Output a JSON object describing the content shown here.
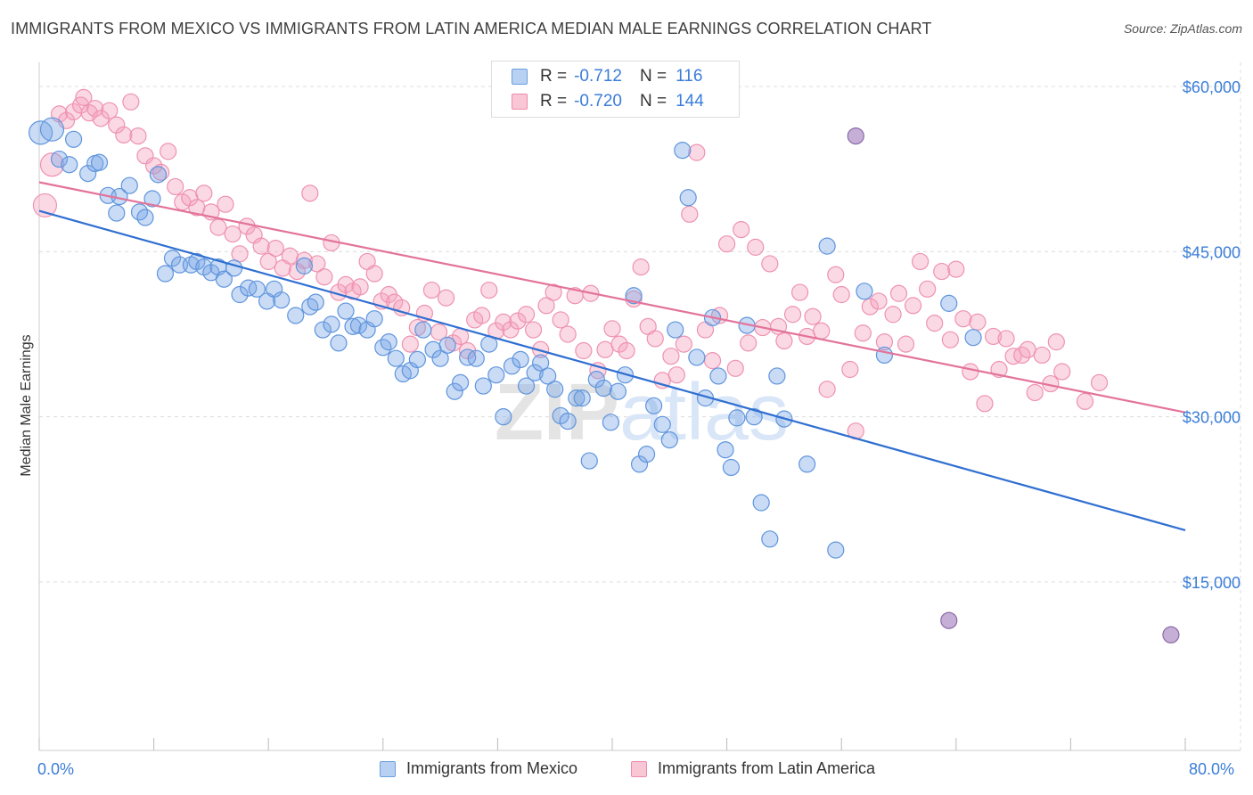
{
  "title": "IMMIGRANTS FROM MEXICO VS IMMIGRANTS FROM LATIN AMERICA MEDIAN MALE EARNINGS CORRELATION CHART",
  "source": "Source: ZipAtlas.com",
  "watermark": "ZIPatlas",
  "legend": {
    "rows": [
      {
        "r_label": "R =",
        "r_value": "-0.712",
        "n_label": "N =",
        "n_value": "116",
        "fill": "#b8d1f3",
        "stroke": "#6a9fe0"
      },
      {
        "r_label": "R =",
        "r_value": "-0.720",
        "n_label": "N =",
        "n_value": "144",
        "fill": "#f9c6d5",
        "stroke": "#ee8aab"
      }
    ]
  },
  "bottom_legend": [
    {
      "label": "Immigrants from Mexico",
      "fill": "#b8d1f3",
      "stroke": "#6a9fe0"
    },
    {
      "label": "Immigrants from Latin America",
      "fill": "#f9c6d5",
      "stroke": "#ee8aab"
    }
  ],
  "colors": {
    "blue_fill": "rgba(120,166,230,0.40)",
    "blue_stroke": "#5f95dd",
    "blue_line": "#2f6fd1",
    "pink_fill": "rgba(245,160,188,0.40)",
    "pink_stroke": "#ee92b0",
    "pink_line": "#e3739b",
    "overlap_fill": "rgba(150,110,180,0.55)",
    "overlap_stroke": "#8c6aa8",
    "axis_text": "#3b7dd8",
    "grid": "#dcdcdc"
  },
  "chart_data": {
    "type": "scatter",
    "title": "IMMIGRANTS FROM MEXICO VS IMMIGRANTS FROM LATIN AMERICA MEDIAN MALE EARNINGS CORRELATION CHART",
    "xlabel": "",
    "ylabel": "Median Male Earnings",
    "x_tick_labels": [
      "0.0%",
      "80.0%"
    ],
    "xlim": [
      0,
      80
    ],
    "ylim": [
      0,
      62000
    ],
    "y_ticks": [
      15000,
      30000,
      45000,
      60000
    ],
    "y_tick_labels": [
      "$15,000",
      "$30,000",
      "$45,000",
      "$60,000"
    ],
    "grid": true,
    "series": [
      {
        "name": "Immigrants from Mexico",
        "r": -0.712,
        "n": 116,
        "trend": {
          "x": [
            0,
            80
          ],
          "y": [
            48700,
            19700
          ]
        },
        "points": [
          [
            0.1,
            55800
          ],
          [
            0.9,
            56100
          ],
          [
            1.4,
            53400
          ],
          [
            2.1,
            52900
          ],
          [
            2.4,
            55200
          ],
          [
            3.4,
            52100
          ],
          [
            3.9,
            53000
          ],
          [
            4.2,
            53100
          ],
          [
            4.8,
            50100
          ],
          [
            5.4,
            48500
          ],
          [
            5.6,
            50000
          ],
          [
            6.3,
            51000
          ],
          [
            7.0,
            48600
          ],
          [
            7.4,
            48100
          ],
          [
            7.9,
            49800
          ],
          [
            8.3,
            52000
          ],
          [
            8.8,
            43000
          ],
          [
            9.3,
            44400
          ],
          [
            9.8,
            43800
          ],
          [
            10.6,
            43800
          ],
          [
            11.0,
            44100
          ],
          [
            11.5,
            43600
          ],
          [
            12.0,
            43100
          ],
          [
            12.5,
            43600
          ],
          [
            12.9,
            42500
          ],
          [
            13.6,
            43500
          ],
          [
            14.0,
            41100
          ],
          [
            14.6,
            41700
          ],
          [
            15.2,
            41600
          ],
          [
            15.9,
            40500
          ],
          [
            16.4,
            41600
          ],
          [
            16.9,
            40600
          ],
          [
            17.9,
            39200
          ],
          [
            18.5,
            43700
          ],
          [
            18.9,
            40000
          ],
          [
            19.3,
            40400
          ],
          [
            19.8,
            37900
          ],
          [
            20.4,
            38400
          ],
          [
            20.9,
            36700
          ],
          [
            21.4,
            39600
          ],
          [
            21.9,
            38200
          ],
          [
            22.3,
            38300
          ],
          [
            22.9,
            37900
          ],
          [
            23.4,
            38900
          ],
          [
            24.0,
            36300
          ],
          [
            24.4,
            36800
          ],
          [
            24.9,
            35300
          ],
          [
            25.4,
            33900
          ],
          [
            25.9,
            34200
          ],
          [
            26.4,
            35200
          ],
          [
            26.8,
            37900
          ],
          [
            27.5,
            36100
          ],
          [
            28.0,
            35300
          ],
          [
            28.5,
            36500
          ],
          [
            29.0,
            32300
          ],
          [
            29.4,
            33100
          ],
          [
            29.9,
            35400
          ],
          [
            30.5,
            35300
          ],
          [
            31.0,
            32800
          ],
          [
            31.4,
            36600
          ],
          [
            31.9,
            33800
          ],
          [
            32.4,
            30000
          ],
          [
            33.0,
            34600
          ],
          [
            33.6,
            35200
          ],
          [
            34.0,
            32800
          ],
          [
            34.6,
            34000
          ],
          [
            35.0,
            34900
          ],
          [
            35.5,
            33700
          ],
          [
            36.0,
            32500
          ],
          [
            36.4,
            30100
          ],
          [
            36.9,
            29600
          ],
          [
            37.5,
            31700
          ],
          [
            37.9,
            31700
          ],
          [
            38.4,
            26000
          ],
          [
            38.9,
            33400
          ],
          [
            39.4,
            32600
          ],
          [
            39.9,
            29500
          ],
          [
            40.4,
            32300
          ],
          [
            40.9,
            33800
          ],
          [
            41.5,
            41000
          ],
          [
            41.9,
            25700
          ],
          [
            42.4,
            26600
          ],
          [
            42.9,
            31000
          ],
          [
            43.5,
            29300
          ],
          [
            44.0,
            27900
          ],
          [
            44.4,
            37900
          ],
          [
            44.9,
            54200
          ],
          [
            45.3,
            49900
          ],
          [
            45.9,
            35400
          ],
          [
            46.5,
            31700
          ],
          [
            47.0,
            39000
          ],
          [
            47.4,
            33700
          ],
          [
            47.9,
            27000
          ],
          [
            48.3,
            25400
          ],
          [
            48.7,
            29900
          ],
          [
            49.4,
            38300
          ],
          [
            49.9,
            30000
          ],
          [
            50.4,
            22200
          ],
          [
            51.0,
            18900
          ],
          [
            51.5,
            33700
          ],
          [
            52.0,
            29800
          ],
          [
            53.6,
            25700
          ],
          [
            55.0,
            45500
          ],
          [
            55.6,
            17900
          ],
          [
            57.6,
            41400
          ],
          [
            59.0,
            35600
          ],
          [
            63.5,
            40300
          ],
          [
            65.2,
            37200
          ]
        ]
      },
      {
        "name": "Immigrants from Latin America",
        "r": -0.72,
        "n": 144,
        "trend": {
          "x": [
            0,
            80
          ],
          "y": [
            51300,
            30400
          ]
        },
        "points": [
          [
            0.4,
            49200
          ],
          [
            0.9,
            52900
          ],
          [
            1.4,
            57500
          ],
          [
            1.9,
            56900
          ],
          [
            2.4,
            57700
          ],
          [
            2.9,
            58300
          ],
          [
            3.1,
            59000
          ],
          [
            3.5,
            57600
          ],
          [
            3.9,
            58000
          ],
          [
            4.3,
            57100
          ],
          [
            4.9,
            57800
          ],
          [
            5.4,
            56500
          ],
          [
            5.9,
            55600
          ],
          [
            6.4,
            58600
          ],
          [
            6.9,
            55500
          ],
          [
            7.4,
            53700
          ],
          [
            8.0,
            52800
          ],
          [
            8.5,
            52200
          ],
          [
            9.0,
            54100
          ],
          [
            9.5,
            50900
          ],
          [
            10.0,
            49500
          ],
          [
            10.5,
            49900
          ],
          [
            11.0,
            49000
          ],
          [
            11.5,
            50300
          ],
          [
            12.0,
            48600
          ],
          [
            12.5,
            47200
          ],
          [
            13.0,
            49300
          ],
          [
            13.5,
            46600
          ],
          [
            14.0,
            44800
          ],
          [
            14.5,
            47300
          ],
          [
            15.0,
            46500
          ],
          [
            15.5,
            45500
          ],
          [
            16.0,
            44100
          ],
          [
            16.5,
            45300
          ],
          [
            17.0,
            43500
          ],
          [
            17.5,
            44600
          ],
          [
            18.0,
            43200
          ],
          [
            18.5,
            44200
          ],
          [
            18.9,
            50300
          ],
          [
            19.4,
            43900
          ],
          [
            19.9,
            42700
          ],
          [
            20.4,
            45800
          ],
          [
            20.9,
            41300
          ],
          [
            21.4,
            42000
          ],
          [
            21.9,
            41400
          ],
          [
            22.4,
            41800
          ],
          [
            22.9,
            44100
          ],
          [
            23.4,
            43000
          ],
          [
            23.9,
            40500
          ],
          [
            24.4,
            41100
          ],
          [
            24.8,
            40400
          ],
          [
            25.3,
            39900
          ],
          [
            25.9,
            36600
          ],
          [
            26.4,
            38100
          ],
          [
            26.9,
            39400
          ],
          [
            27.4,
            41500
          ],
          [
            27.9,
            37700
          ],
          [
            28.4,
            40800
          ],
          [
            28.9,
            36700
          ],
          [
            29.4,
            37300
          ],
          [
            29.9,
            36000
          ],
          [
            30.4,
            38800
          ],
          [
            30.9,
            39200
          ],
          [
            31.4,
            41500
          ],
          [
            31.9,
            37800
          ],
          [
            32.4,
            38600
          ],
          [
            32.9,
            37900
          ],
          [
            33.4,
            38700
          ],
          [
            34.0,
            39300
          ],
          [
            34.5,
            37900
          ],
          [
            35.0,
            36100
          ],
          [
            35.4,
            40100
          ],
          [
            35.9,
            41300
          ],
          [
            36.4,
            38800
          ],
          [
            36.9,
            37500
          ],
          [
            37.4,
            41000
          ],
          [
            38.0,
            36000
          ],
          [
            38.5,
            41200
          ],
          [
            39.0,
            34200
          ],
          [
            39.5,
            36100
          ],
          [
            40.0,
            38000
          ],
          [
            40.5,
            36600
          ],
          [
            41.0,
            36000
          ],
          [
            41.5,
            40700
          ],
          [
            42.0,
            43600
          ],
          [
            42.5,
            38200
          ],
          [
            43.0,
            37100
          ],
          [
            43.5,
            33300
          ],
          [
            44.1,
            35500
          ],
          [
            44.5,
            33800
          ],
          [
            45.0,
            36600
          ],
          [
            45.4,
            48400
          ],
          [
            45.9,
            54000
          ],
          [
            46.5,
            37900
          ],
          [
            47.0,
            35100
          ],
          [
            47.5,
            39200
          ],
          [
            48.0,
            45700
          ],
          [
            48.6,
            34400
          ],
          [
            49.0,
            47000
          ],
          [
            49.5,
            36700
          ],
          [
            50.0,
            45400
          ],
          [
            50.5,
            38100
          ],
          [
            51.0,
            43900
          ],
          [
            51.6,
            38200
          ],
          [
            52.0,
            36900
          ],
          [
            52.6,
            39300
          ],
          [
            53.1,
            41300
          ],
          [
            53.6,
            37300
          ],
          [
            54.0,
            39100
          ],
          [
            54.6,
            37800
          ],
          [
            55.0,
            32500
          ],
          [
            55.6,
            42900
          ],
          [
            56.0,
            41100
          ],
          [
            56.6,
            34300
          ],
          [
            57.0,
            28700
          ],
          [
            57.5,
            37600
          ],
          [
            58.0,
            40000
          ],
          [
            58.6,
            40500
          ],
          [
            59.0,
            36800
          ],
          [
            59.6,
            39300
          ],
          [
            60.0,
            41200
          ],
          [
            60.5,
            36600
          ],
          [
            61.0,
            40100
          ],
          [
            61.5,
            44100
          ],
          [
            62.0,
            41600
          ],
          [
            62.5,
            38500
          ],
          [
            63.0,
            43200
          ],
          [
            63.6,
            37000
          ],
          [
            64.0,
            43400
          ],
          [
            64.5,
            38900
          ],
          [
            65.0,
            34100
          ],
          [
            65.5,
            38600
          ],
          [
            66.0,
            31200
          ],
          [
            66.6,
            37300
          ],
          [
            67.0,
            34300
          ],
          [
            67.5,
            37100
          ],
          [
            68.0,
            35500
          ],
          [
            68.6,
            35600
          ],
          [
            69.0,
            36100
          ],
          [
            69.5,
            32200
          ],
          [
            70.0,
            35600
          ],
          [
            70.6,
            33000
          ],
          [
            71.0,
            36800
          ],
          [
            71.4,
            34100
          ],
          [
            73.0,
            31400
          ],
          [
            74.0,
            33100
          ]
        ]
      }
    ],
    "overlap_points": [
      [
        57.0,
        55500
      ],
      [
        63.5,
        11500
      ],
      [
        79.0,
        10200
      ]
    ]
  }
}
